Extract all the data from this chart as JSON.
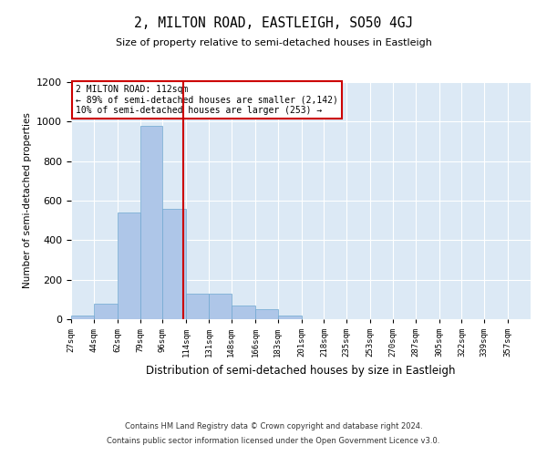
{
  "title": "2, MILTON ROAD, EASTLEIGH, SO50 4GJ",
  "subtitle": "Size of property relative to semi-detached houses in Eastleigh",
  "xlabel": "Distribution of semi-detached houses by size in Eastleigh",
  "ylabel": "Number of semi-detached properties",
  "annotation_line1": "2 MILTON ROAD: 112sqm",
  "annotation_line2": "← 89% of semi-detached houses are smaller (2,142)",
  "annotation_line3": "10% of semi-detached houses are larger (253) →",
  "bin_edges": [
    27,
    44,
    62,
    79,
    96,
    114,
    131,
    148,
    166,
    183,
    201,
    218,
    235,
    253,
    270,
    287,
    305,
    322,
    339,
    357,
    374
  ],
  "bar_heights": [
    20,
    80,
    540,
    980,
    560,
    130,
    130,
    70,
    50,
    20,
    0,
    0,
    0,
    0,
    0,
    0,
    0,
    0,
    0,
    0
  ],
  "bar_color": "#aec6e8",
  "bar_edgecolor": "#6fa8d0",
  "vline_x": 112,
  "vline_color": "#cc0000",
  "annotation_box_edgecolor": "#cc0000",
  "background_color": "#dce9f5",
  "ylim": [
    0,
    1200
  ],
  "yticks": [
    0,
    200,
    400,
    600,
    800,
    1000,
    1200
  ],
  "footer_line1": "Contains HM Land Registry data © Crown copyright and database right 2024.",
  "footer_line2": "Contains public sector information licensed under the Open Government Licence v3.0."
}
